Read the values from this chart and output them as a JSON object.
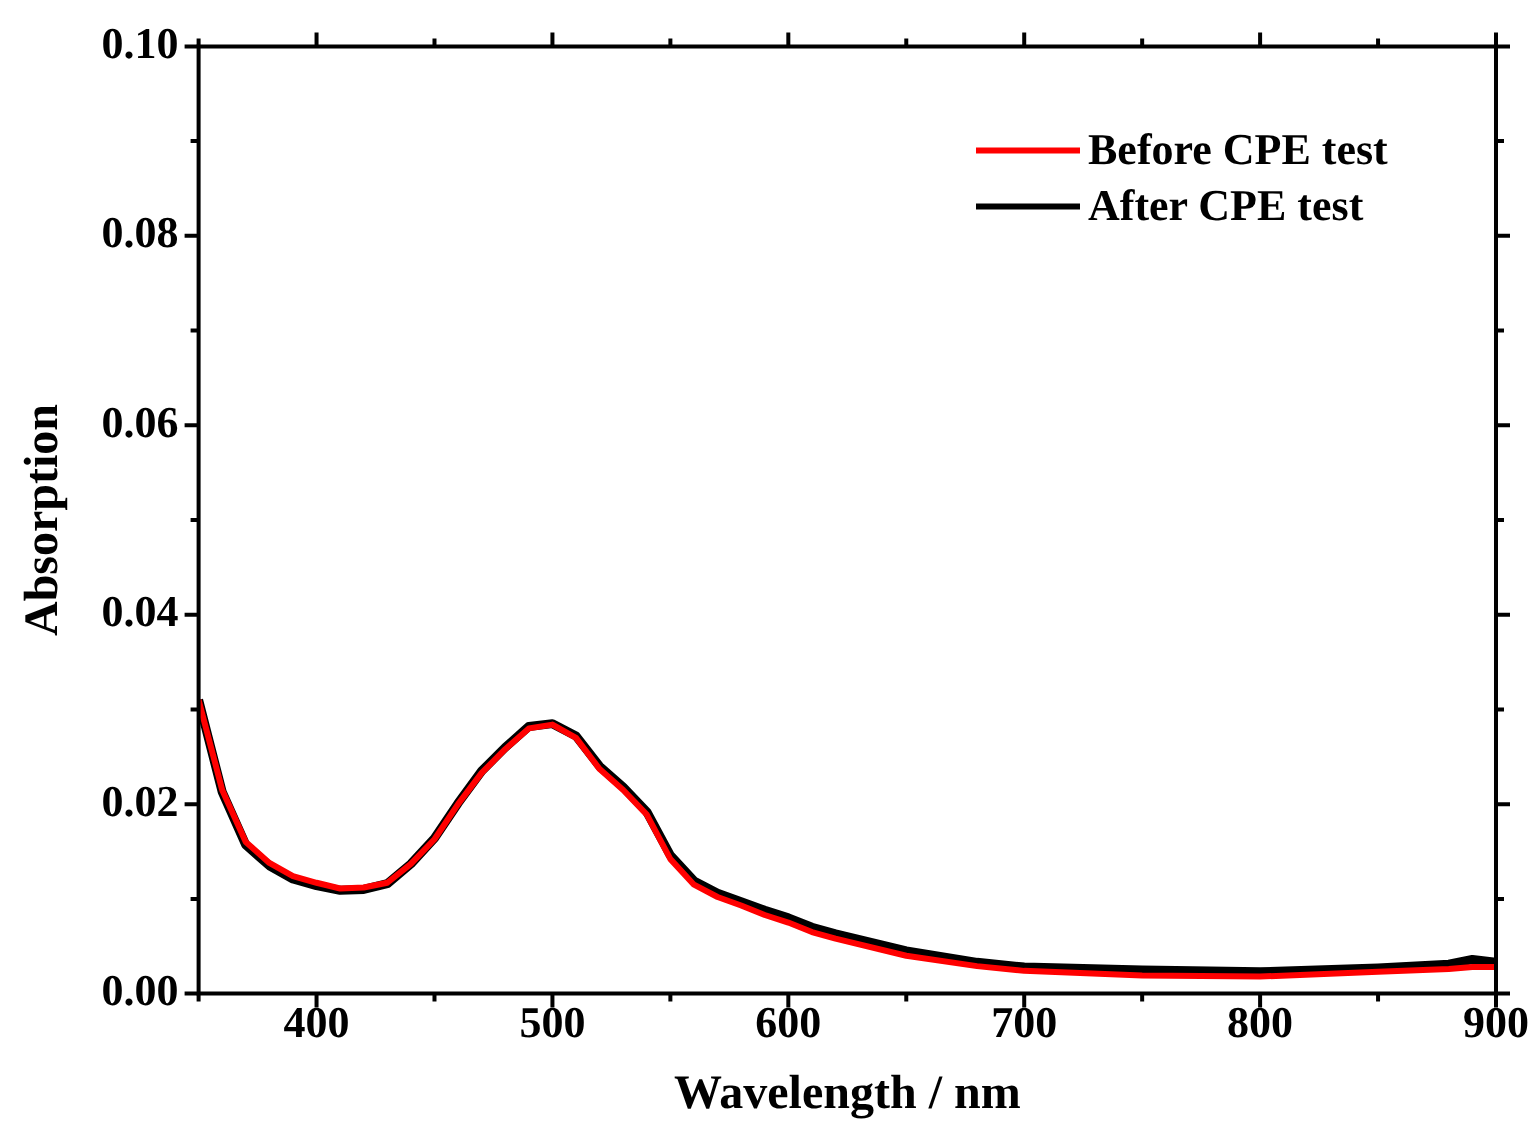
{
  "chart_data": {
    "type": "line",
    "xlabel": "Wavelength / nm",
    "ylabel": "Absorption",
    "x": [
      350,
      360,
      370,
      380,
      390,
      400,
      410,
      420,
      430,
      440,
      450,
      460,
      470,
      480,
      490,
      500,
      510,
      520,
      530,
      540,
      550,
      560,
      570,
      580,
      590,
      600,
      610,
      620,
      650,
      680,
      700,
      750,
      800,
      850,
      880,
      890,
      900
    ],
    "series": [
      {
        "name": "Before CPE test",
        "color": "#ff0000",
        "values": [
          0.031,
          0.0215,
          0.016,
          0.0138,
          0.0124,
          0.0117,
          0.0111,
          0.0112,
          0.0117,
          0.0137,
          0.0163,
          0.02,
          0.0233,
          0.0258,
          0.028,
          0.0284,
          0.027,
          0.0237,
          0.0215,
          0.0189,
          0.0142,
          0.0115,
          0.0102,
          0.0093,
          0.0083,
          0.0075,
          0.0065,
          0.0058,
          0.004,
          0.0029,
          0.0024,
          0.0019,
          0.0018,
          0.0023,
          0.0026,
          0.0028,
          0.0028
        ]
      },
      {
        "name": "After CPE test",
        "color": "#000000",
        "values": [
          0.031,
          0.0213,
          0.0157,
          0.0135,
          0.0121,
          0.0114,
          0.0109,
          0.011,
          0.0116,
          0.0137,
          0.0164,
          0.0201,
          0.0235,
          0.026,
          0.0282,
          0.0285,
          0.0272,
          0.024,
          0.0218,
          0.0192,
          0.0146,
          0.0119,
          0.0106,
          0.0097,
          0.0088,
          0.008,
          0.007,
          0.0063,
          0.0045,
          0.0033,
          0.0028,
          0.0025,
          0.0023,
          0.0027,
          0.0031,
          0.0036,
          0.0033
        ]
      }
    ],
    "xlim": [
      350,
      900
    ],
    "xticks": [
      400,
      500,
      600,
      700,
      800,
      900
    ],
    "ylim": [
      0,
      0.1
    ],
    "yticks": [
      {
        "value": 0,
        "label": "0.00"
      },
      {
        "value": 0.02,
        "label": "0.02"
      },
      {
        "value": 0.04,
        "label": "0.04"
      },
      {
        "value": 0.06,
        "label": "0.06"
      },
      {
        "value": 0.08,
        "label": "0.08"
      },
      {
        "value": 0.1,
        "label": "0.10"
      }
    ],
    "grid": false,
    "legend": "top right",
    "marker": "none",
    "line_style": "solid"
  }
}
